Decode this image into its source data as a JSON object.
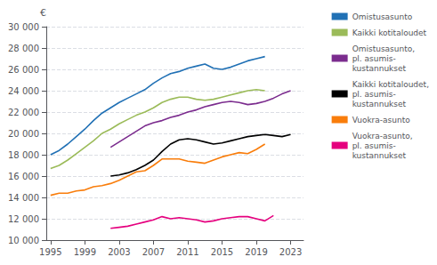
{
  "chart_data": {
    "type": "line",
    "ylabel": "€",
    "x": [
      1995,
      1996,
      1997,
      1998,
      1999,
      2000,
      2001,
      2002,
      2003,
      2004,
      2005,
      2006,
      2007,
      2008,
      2009,
      2010,
      2011,
      2012,
      2013,
      2014,
      2015,
      2016,
      2017,
      2018,
      2019,
      2020,
      2021,
      2022,
      2023
    ],
    "series": [
      {
        "name": "Omistusasunto",
        "color": "#2171b5",
        "values": [
          18000,
          18400,
          19000,
          19700,
          20400,
          21200,
          21900,
          22400,
          22900,
          23300,
          23700,
          24100,
          24700,
          25200,
          25600,
          25800,
          26100,
          26300,
          26500,
          26100,
          26000,
          26200,
          26500,
          26800,
          27000,
          27200,
          null,
          null,
          null
        ]
      },
      {
        "name": "Kaikki kotitaloudet",
        "color": "#9bbb59",
        "values": [
          16700,
          17000,
          17500,
          18100,
          18700,
          19300,
          20000,
          20400,
          20900,
          21300,
          21700,
          22000,
          22400,
          22900,
          23200,
          23400,
          23400,
          23200,
          23100,
          23200,
          23400,
          23600,
          23800,
          24000,
          24100,
          24000,
          null,
          null,
          null
        ]
      },
      {
        "name": "Omistusasunto,\npl. asumis-\nkustannukset",
        "color": "#7b2c8e",
        "values": [
          null,
          null,
          null,
          null,
          null,
          null,
          null,
          18700,
          19200,
          19700,
          20200,
          20700,
          21000,
          21200,
          21500,
          21700,
          22000,
          22200,
          22500,
          22700,
          22900,
          23000,
          22900,
          22700,
          22800,
          23000,
          23300,
          23700,
          24000
        ]
      },
      {
        "name": "Kaikki kotitaloudet,\npl. asumis-\nkustannukset",
        "color": "#000000",
        "values": [
          null,
          null,
          null,
          null,
          null,
          null,
          null,
          16000,
          16100,
          16300,
          16600,
          17000,
          17500,
          18300,
          19000,
          19400,
          19500,
          19400,
          19200,
          19000,
          19100,
          19300,
          19500,
          19700,
          19800,
          19900,
          19800,
          19700,
          19900
        ]
      },
      {
        "name": "Vuokra-asunto",
        "color": "#f97d0b",
        "values": [
          14200,
          14400,
          14400,
          14600,
          14700,
          15000,
          15100,
          15300,
          15600,
          16000,
          16400,
          16500,
          17000,
          17600,
          17600,
          17600,
          17400,
          17300,
          17200,
          17500,
          17800,
          18000,
          18200,
          18100,
          18500,
          19000,
          null,
          null,
          null
        ]
      },
      {
        "name": "Vuokra-asunto,\npl. asumis-\nkustannukset",
        "color": "#e5007e",
        "values": [
          null,
          null,
          null,
          null,
          null,
          null,
          null,
          11100,
          11200,
          11300,
          11500,
          11700,
          11900,
          12200,
          12000,
          12100,
          12000,
          11900,
          11700,
          11800,
          12000,
          12100,
          12200,
          12200,
          12000,
          11800,
          12300,
          null,
          null
        ]
      }
    ],
    "xlim": [
      1994.5,
      2024.5
    ],
    "xticks": [
      1995,
      1999,
      2003,
      2007,
      2011,
      2015,
      2019,
      2023
    ],
    "ylim": [
      10000,
      30000
    ],
    "yticks": [
      {
        "value": 10000,
        "label": "10 000"
      },
      {
        "value": 12000,
        "label": "12 000"
      },
      {
        "value": 14000,
        "label": "14 000"
      },
      {
        "value": 16000,
        "label": "16 000"
      },
      {
        "value": 18000,
        "label": "18 000"
      },
      {
        "value": 20000,
        "label": "20 000"
      },
      {
        "value": 22000,
        "label": "22 000"
      },
      {
        "value": 24000,
        "label": "24 000"
      },
      {
        "value": 26000,
        "label": "26 000"
      },
      {
        "value": 28000,
        "label": "28 000"
      },
      {
        "value": 30000,
        "label": "30 000"
      }
    ],
    "grid": true,
    "legend": "right"
  }
}
